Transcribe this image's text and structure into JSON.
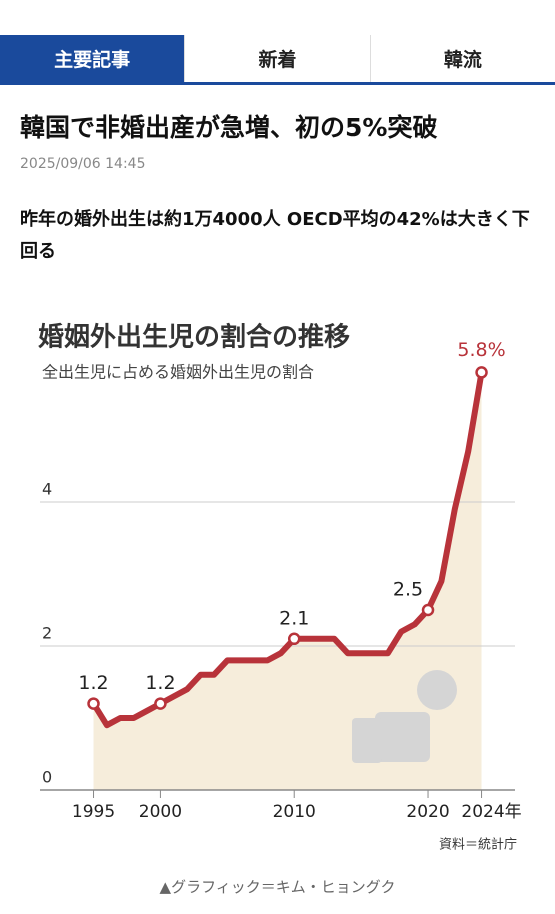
{
  "tabs": [
    "主要記事",
    "新着",
    "韓流"
  ],
  "headline": "韓国で非婚出産が急増、初の5%突破",
  "date": "2025/09/06 14:45",
  "subheadline": "昨年の婚外出生は約1万4000人 OECD平均の42%は大きく下回る",
  "caption": "▲グラフィック＝キム・ヒョングク",
  "chart_data": {
    "type": "line",
    "title": "婚姻外出生児の割合の推移",
    "subtitle": "全出生児に占める婚姻外出生児の割合",
    "source": "資料＝統計庁",
    "x": [
      1995,
      1996,
      1997,
      1998,
      1999,
      2000,
      2001,
      2002,
      2003,
      2004,
      2005,
      2006,
      2007,
      2008,
      2009,
      2010,
      2011,
      2012,
      2013,
      2014,
      2015,
      2016,
      2017,
      2018,
      2019,
      2020,
      2021,
      2022,
      2023,
      2024
    ],
    "series": [
      {
        "color": "#b8333a",
        "values": [
          1.2,
          0.9,
          1.0,
          1.0,
          1.1,
          1.2,
          1.3,
          1.4,
          1.6,
          1.6,
          1.8,
          1.8,
          1.8,
          1.8,
          1.9,
          2.1,
          2.1,
          2.1,
          2.1,
          1.9,
          1.9,
          1.9,
          1.9,
          2.2,
          2.3,
          2.5,
          2.9,
          3.9,
          4.7,
          5.8
        ],
        "value_labels": [
          "1.2",
          null,
          null,
          null,
          null,
          "1.2",
          null,
          null,
          null,
          null,
          null,
          null,
          null,
          null,
          null,
          "2.1",
          null,
          null,
          null,
          null,
          null,
          null,
          null,
          null,
          null,
          "2.5",
          null,
          null,
          null,
          "5.8%"
        ]
      }
    ],
    "area_color": "#f6eddb",
    "xlim": [
      1991,
      2026.5
    ],
    "ylim": [
      0,
      6.5
    ],
    "xticks": [
      1995,
      2000,
      2010,
      2020,
      {
        "value": 2024,
        "label": "2024年"
      }
    ],
    "yticks": [
      0,
      2,
      4
    ],
    "grid": true
  }
}
